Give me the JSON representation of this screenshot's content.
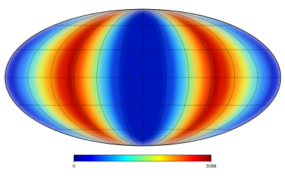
{
  "chart_data": {
    "type": "mollweide",
    "colormap": "jet",
    "clim": [
      0,
      3088
    ],
    "cticks": [
      0,
      3088
    ],
    "graticule": true
  }
}
